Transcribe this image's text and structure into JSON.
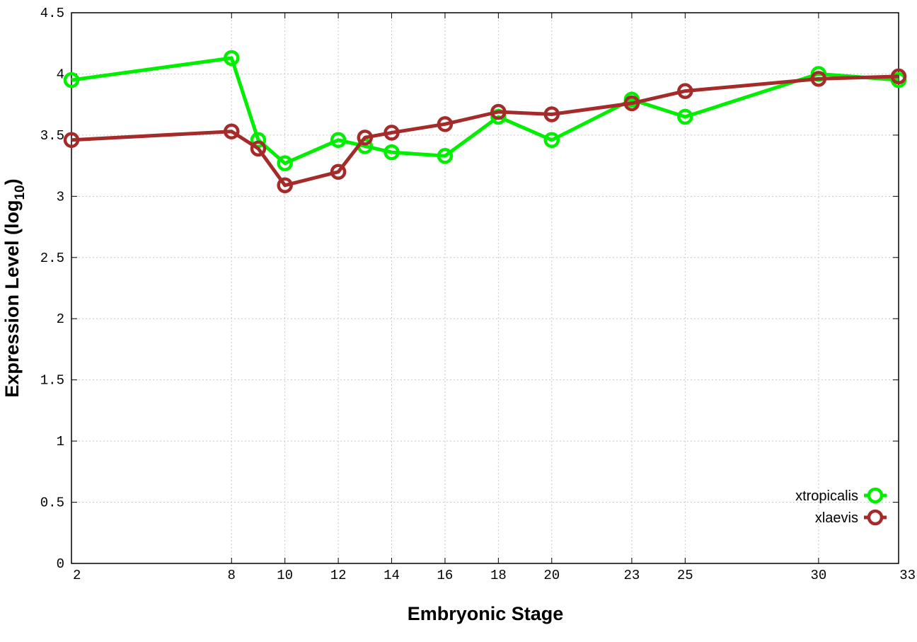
{
  "chart_data": {
    "type": "line",
    "xlabel": "Embryonic Stage",
    "ylabel_main": "Expression Level (log",
    "ylabel_sub": "10",
    "ylabel_close": ")",
    "ylim": [
      0,
      4.5
    ],
    "xlim": [
      2,
      33
    ],
    "grid": true,
    "legend_position": "bottom-right",
    "x_ticks": [
      2,
      8,
      10,
      12,
      14,
      16,
      18,
      20,
      23,
      25,
      30,
      33
    ],
    "x_tick_labels": [
      "2",
      "8",
      "10",
      "12",
      "14",
      "16",
      "18",
      "20",
      "23",
      "25",
      "30",
      "33"
    ],
    "y_ticks": [
      0,
      0.5,
      1,
      1.5,
      2,
      2.5,
      3,
      3.5,
      4,
      4.5
    ],
    "y_tick_labels": [
      "0",
      "0.5",
      "1",
      "1.5",
      "2",
      "2.5",
      "3",
      "3.5",
      "4",
      "4.5"
    ],
    "x": [
      2,
      8,
      9,
      10,
      12,
      13,
      14,
      16,
      18,
      20,
      23,
      25,
      30,
      33
    ],
    "series": [
      {
        "name": "xtropicalis",
        "color": "#00ee00",
        "values": [
          3.95,
          4.13,
          3.46,
          3.27,
          3.46,
          3.41,
          3.36,
          3.33,
          3.65,
          3.46,
          3.79,
          3.65,
          4.0,
          3.95
        ]
      },
      {
        "name": "xlaevis",
        "color": "#a52a2a",
        "values": [
          3.46,
          3.53,
          3.39,
          3.09,
          3.2,
          3.48,
          3.52,
          3.59,
          3.69,
          3.67,
          3.76,
          3.86,
          3.96,
          3.98
        ]
      }
    ]
  }
}
